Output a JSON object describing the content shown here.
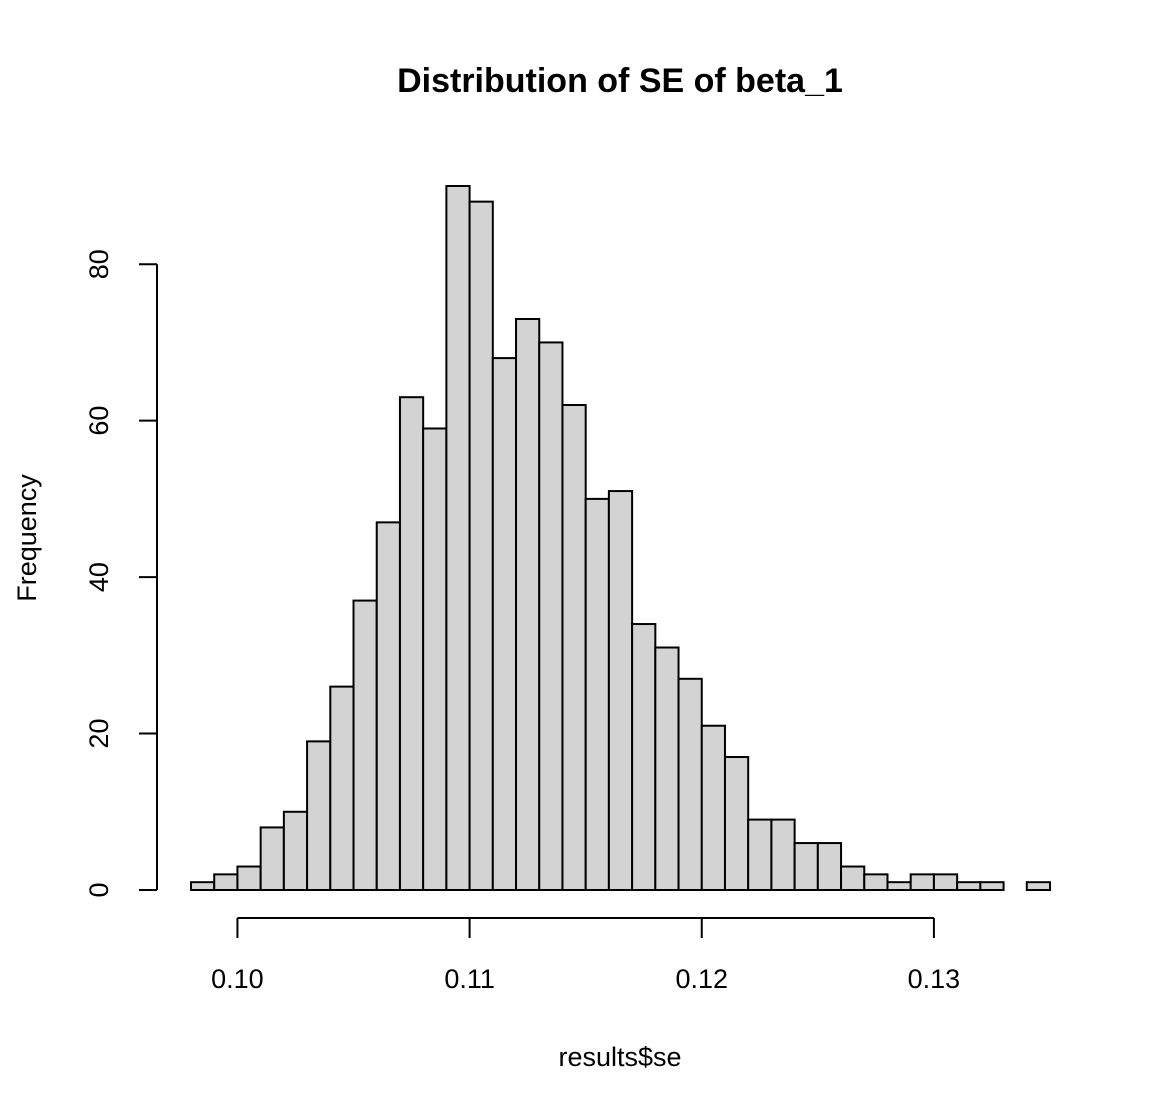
{
  "chart_data": {
    "type": "bar",
    "title": "Distribution of SE of beta_1",
    "xlabel": "results$se",
    "ylabel": "Frequency",
    "bin_width": 0.001,
    "bin_start": 0.098,
    "bin_end": 0.135,
    "counts": [
      1,
      2,
      3,
      8,
      10,
      19,
      26,
      37,
      47,
      63,
      59,
      90,
      88,
      68,
      73,
      70,
      62,
      50,
      51,
      34,
      31,
      27,
      21,
      17,
      9,
      9,
      6,
      6,
      3,
      2,
      1,
      2,
      2,
      1,
      1,
      0,
      1
    ],
    "xlim": [
      0.098,
      0.135
    ],
    "ylim": [
      0,
      90
    ],
    "x_ticks": [
      0.1,
      0.11,
      0.12,
      0.13
    ],
    "x_tick_labels": [
      "0.10",
      "0.11",
      "0.12",
      "0.13"
    ],
    "y_ticks": [
      0,
      20,
      40,
      60,
      80
    ],
    "y_tick_labels": [
      "0",
      "20",
      "40",
      "60",
      "80"
    ],
    "grid": false,
    "bar_color": "#D3D3D3",
    "border_color": "#000000"
  }
}
